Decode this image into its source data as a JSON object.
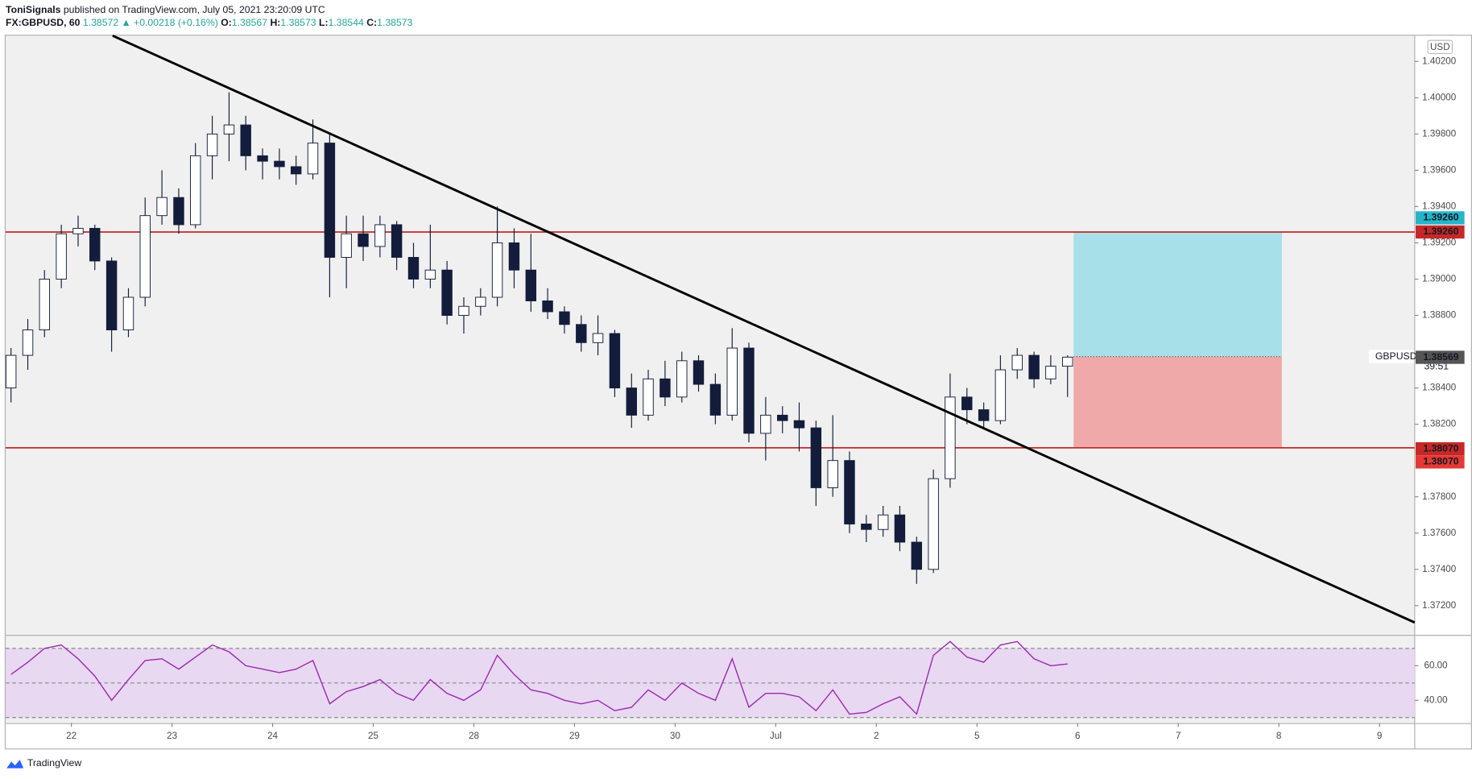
{
  "header": {
    "author": "ToniSignals",
    "published": "published on TradingView.com, July 05, 2021 23:20:09 UTC",
    "symbol": "FX:GBPUSD, 60",
    "price": "1.38572",
    "change": "▲ +0.00218 (+0.16%)",
    "ohlc_keys": [
      "O:",
      "H:",
      "L:",
      "C:"
    ],
    "ohlc_values": [
      "1.38567",
      "1.38573",
      "1.38544",
      "1.38573"
    ]
  },
  "footer": {
    "brand": "TradingView"
  },
  "chart_data": {
    "type": "candlestick",
    "currency": "USD",
    "xlim": [
      -0.653,
      13.35
    ],
    "xticks": [
      {
        "value": 0,
        "label": "22"
      },
      {
        "value": 1,
        "label": "23"
      },
      {
        "value": 2,
        "label": "24"
      },
      {
        "value": 3,
        "label": "25"
      },
      {
        "value": 4,
        "label": "28"
      },
      {
        "value": 5,
        "label": "29"
      },
      {
        "value": 6,
        "label": "30"
      },
      {
        "value": 7,
        "label": "Jul"
      },
      {
        "value": 8,
        "label": "2"
      },
      {
        "value": 9,
        "label": "5"
      },
      {
        "value": 10,
        "label": "6"
      },
      {
        "value": 11,
        "label": "7"
      },
      {
        "value": 12,
        "label": "8"
      },
      {
        "value": 13,
        "label": "9"
      }
    ],
    "ylim": [
      1.37039,
      1.40342
    ],
    "yticks": [
      {
        "value": 1.372,
        "label": "1.37200"
      },
      {
        "value": 1.374,
        "label": "1.37400"
      },
      {
        "value": 1.376,
        "label": "1.37600"
      },
      {
        "value": 1.378,
        "label": "1.37800"
      },
      {
        "value": 1.382,
        "label": "1.38200"
      },
      {
        "value": 1.384,
        "label": "1.38400"
      },
      {
        "value": 1.388,
        "label": "1.38800"
      },
      {
        "value": 1.39,
        "label": "1.39000"
      },
      {
        "value": 1.392,
        "label": "1.39200"
      },
      {
        "value": 1.394,
        "label": "1.39400"
      },
      {
        "value": 1.396,
        "label": "1.39600"
      },
      {
        "value": 1.398,
        "label": "1.39800"
      },
      {
        "value": 1.4,
        "label": "1.40000"
      },
      {
        "value": 1.402,
        "label": "1.40200"
      }
    ],
    "up_color": "#ffffff",
    "down_color": "#131d3b",
    "border_color": "#131d3b",
    "series": {
      "name": "GBPUSD",
      "x": [
        -0.6,
        -0.433,
        -0.267,
        -0.1,
        0.067,
        0.233,
        0.4,
        0.567,
        0.733,
        0.9,
        1.067,
        1.233,
        1.4,
        1.567,
        1.733,
        1.9,
        2.067,
        2.233,
        2.4,
        2.567,
        2.733,
        2.9,
        3.067,
        3.233,
        3.4,
        3.567,
        3.733,
        3.9,
        4.067,
        4.233,
        4.4,
        4.567,
        4.733,
        4.9,
        5.067,
        5.233,
        5.4,
        5.567,
        5.733,
        5.9,
        6.067,
        6.233,
        6.4,
        6.567,
        6.733,
        6.9,
        7.067,
        7.233,
        7.4,
        7.567,
        7.733,
        7.9,
        8.067,
        8.233,
        8.4,
        8.567,
        8.733,
        8.9,
        9.067,
        9.233,
        9.4,
        9.567,
        9.733,
        9.9
      ],
      "open": [
        1.384,
        1.3858,
        1.3872,
        1.39,
        1.3925,
        1.3928,
        1.391,
        1.3872,
        1.389,
        1.3935,
        1.3945,
        1.393,
        1.3968,
        1.398,
        1.3985,
        1.3968,
        1.3965,
        1.3962,
        1.3958,
        1.3975,
        1.3912,
        1.3925,
        1.3918,
        1.393,
        1.3912,
        1.39,
        1.3905,
        1.388,
        1.3885,
        1.389,
        1.392,
        1.3905,
        1.3888,
        1.3882,
        1.3875,
        1.3865,
        1.387,
        1.384,
        1.3825,
        1.3845,
        1.3835,
        1.3855,
        1.3842,
        1.3825,
        1.3862,
        1.3815,
        1.3825,
        1.3822,
        1.3818,
        1.3785,
        1.38,
        1.3765,
        1.3762,
        1.377,
        1.3755,
        1.374,
        1.379,
        1.3835,
        1.3828,
        1.3822,
        1.385,
        1.3858,
        1.3845,
        1.3852
      ],
      "high": [
        1.3862,
        1.3878,
        1.3905,
        1.393,
        1.3935,
        1.393,
        1.3912,
        1.3895,
        1.3945,
        1.396,
        1.395,
        1.3975,
        1.399,
        1.4003,
        1.399,
        1.3972,
        1.3972,
        1.3968,
        1.3988,
        1.398,
        1.3935,
        1.3935,
        1.3935,
        1.3932,
        1.392,
        1.393,
        1.391,
        1.389,
        1.3895,
        1.394,
        1.3928,
        1.3925,
        1.3895,
        1.3885,
        1.388,
        1.388,
        1.3872,
        1.3848,
        1.385,
        1.3855,
        1.386,
        1.3858,
        1.3848,
        1.3873,
        1.3865,
        1.3835,
        1.383,
        1.3832,
        1.3822,
        1.3825,
        1.3805,
        1.377,
        1.3775,
        1.3775,
        1.3758,
        1.3795,
        1.3848,
        1.384,
        1.3832,
        1.3858,
        1.3862,
        1.386,
        1.3858,
        1.3858
      ],
      "low": [
        1.3832,
        1.385,
        1.3868,
        1.3895,
        1.3918,
        1.3905,
        1.386,
        1.3868,
        1.3885,
        1.393,
        1.3925,
        1.3928,
        1.3955,
        1.3965,
        1.396,
        1.3955,
        1.3955,
        1.3952,
        1.3955,
        1.389,
        1.3895,
        1.391,
        1.3912,
        1.3905,
        1.3895,
        1.3895,
        1.3875,
        1.387,
        1.388,
        1.3885,
        1.3895,
        1.3882,
        1.3878,
        1.387,
        1.386,
        1.3858,
        1.3835,
        1.3818,
        1.3822,
        1.383,
        1.3832,
        1.3838,
        1.382,
        1.3822,
        1.381,
        1.38,
        1.3815,
        1.3805,
        1.3775,
        1.378,
        1.376,
        1.3755,
        1.3758,
        1.375,
        1.3732,
        1.3738,
        1.3785,
        1.382,
        1.3818,
        1.382,
        1.3845,
        1.384,
        1.3842,
        1.3835
      ],
      "close": [
        1.3858,
        1.3872,
        1.39,
        1.3925,
        1.3928,
        1.391,
        1.3872,
        1.389,
        1.3935,
        1.3945,
        1.393,
        1.3968,
        1.398,
        1.3985,
        1.3968,
        1.3965,
        1.3962,
        1.3958,
        1.3975,
        1.3912,
        1.3925,
        1.3918,
        1.393,
        1.3912,
        1.39,
        1.3905,
        1.388,
        1.3885,
        1.389,
        1.392,
        1.3905,
        1.3888,
        1.3882,
        1.3875,
        1.3865,
        1.387,
        1.384,
        1.3825,
        1.3845,
        1.3835,
        1.3855,
        1.3842,
        1.3825,
        1.3862,
        1.3815,
        1.3825,
        1.3822,
        1.3818,
        1.3785,
        1.38,
        1.3765,
        1.3762,
        1.377,
        1.3755,
        1.374,
        1.379,
        1.3835,
        1.3828,
        1.3822,
        1.385,
        1.3858,
        1.3845,
        1.3852,
        1.3857
      ]
    },
    "levels": [
      {
        "value": 1.3926,
        "label": "1.39260"
      },
      {
        "value": 1.3807,
        "label": "1.38070"
      }
    ],
    "level_color": "#c62828",
    "trendline": [
      [
        0.41,
        1.40342
      ],
      [
        13.35,
        1.37107
      ]
    ],
    "position": {
      "x_start": 9.96,
      "x_end": 12.03,
      "target": {
        "value": 1.3926,
        "label": "1.39260"
      },
      "entry": 1.38573,
      "stop": {
        "value": 1.3807,
        "label": "1.38070"
      },
      "profit_color": "#a8e0e9",
      "loss_color": "#f0a9a9"
    },
    "last_price": {
      "value": 1.38573,
      "label": "1.38573"
    },
    "countdown": "39:51",
    "bid": {
      "value": 1.38569,
      "label": "1.38569"
    },
    "rsi": {
      "ylim": [
        26.8,
        77.3
      ],
      "yticks": [
        {
          "value": 40,
          "label": "40.00"
        },
        {
          "value": 60,
          "label": "60.00"
        }
      ],
      "levels": [
        70,
        50,
        30
      ],
      "color": "#9c27b0",
      "band_color": "#e8d8f2",
      "values": [
        55,
        62,
        70,
        72,
        64,
        54,
        40,
        52,
        63,
        64,
        58,
        65,
        72,
        68,
        60,
        58,
        56,
        58,
        63,
        38,
        45,
        48,
        52,
        44,
        40,
        52,
        44,
        40,
        46,
        66,
        55,
        46,
        44,
        40,
        38,
        40,
        34,
        36,
        46,
        40,
        50,
        44,
        40,
        64,
        36,
        44,
        44,
        42,
        34,
        46,
        32,
        33,
        38,
        42,
        32,
        66,
        74,
        65,
        62,
        72,
        74,
        64,
        60,
        61
      ]
    }
  }
}
